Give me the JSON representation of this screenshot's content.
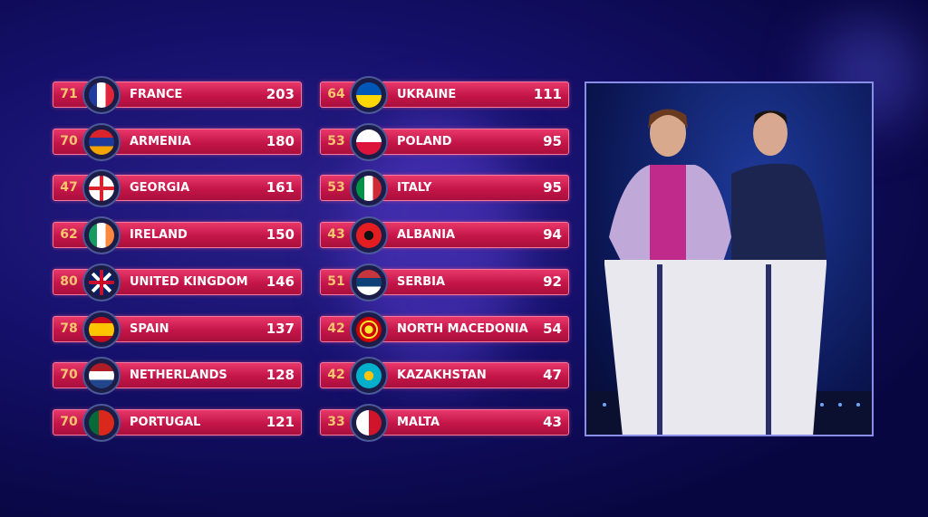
{
  "scoreboard": {
    "left": [
      {
        "points": "71",
        "country": "FRANCE",
        "total": "203",
        "flag": "france"
      },
      {
        "points": "70",
        "country": "ARMENIA",
        "total": "180",
        "flag": "armenia"
      },
      {
        "points": "47",
        "country": "GEORGIA",
        "total": "161",
        "flag": "georgia"
      },
      {
        "points": "62",
        "country": "IRELAND",
        "total": "150",
        "flag": "ireland"
      },
      {
        "points": "80",
        "country": "UNITED KINGDOM",
        "total": "146",
        "flag": "uk"
      },
      {
        "points": "78",
        "country": "SPAIN",
        "total": "137",
        "flag": "spain"
      },
      {
        "points": "70",
        "country": "NETHERLANDS",
        "total": "128",
        "flag": "netherlands"
      },
      {
        "points": "70",
        "country": "PORTUGAL",
        "total": "121",
        "flag": "portugal"
      }
    ],
    "right": [
      {
        "points": "64",
        "country": "UKRAINE",
        "total": "111",
        "flag": "ukraine"
      },
      {
        "points": "53",
        "country": "POLAND",
        "total": "95",
        "flag": "poland"
      },
      {
        "points": "53",
        "country": "ITALY",
        "total": "95",
        "flag": "italy"
      },
      {
        "points": "43",
        "country": "ALBANIA",
        "total": "94",
        "flag": "albania"
      },
      {
        "points": "51",
        "country": "SERBIA",
        "total": "92",
        "flag": "serbia"
      },
      {
        "points": "42",
        "country": "NORTH MACEDONIA",
        "total": "54",
        "flag": "north-macedonia"
      },
      {
        "points": "42",
        "country": "KAZAKHSTAN",
        "total": "47",
        "flag": "kazakhstan"
      },
      {
        "points": "33",
        "country": "MALTA",
        "total": "43",
        "flag": "malta"
      }
    ]
  },
  "colors": {
    "bar": "#c41549",
    "points": "#f6c56d",
    "panel_border": "#8b8ee8"
  }
}
